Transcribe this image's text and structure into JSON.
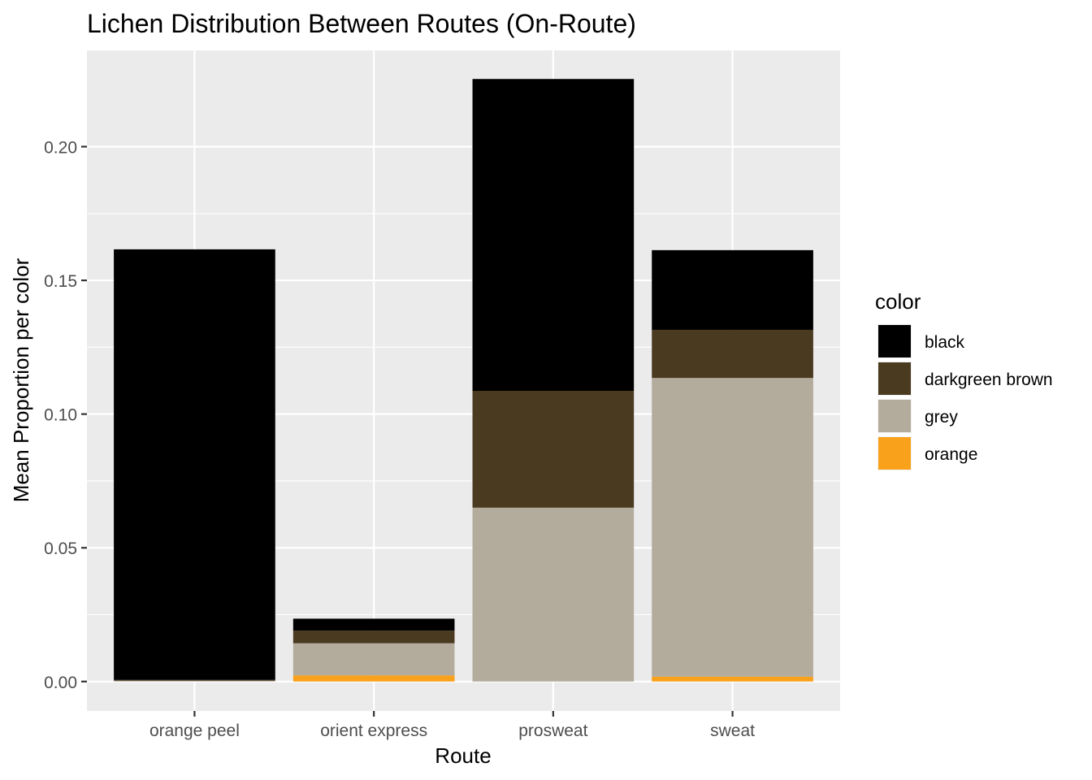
{
  "chart_data": {
    "type": "bar",
    "stacked": true,
    "title": "Lichen Distribution Between Routes (On-Route)",
    "xlabel": "Route",
    "ylabel": "Mean Proportion per color",
    "categories": [
      "orange peel",
      "orient express",
      "prosweat",
      "sweat"
    ],
    "ylim": [
      -0.011,
      0.236
    ],
    "yticks": [
      0.0,
      0.05,
      0.1,
      0.15,
      0.2
    ],
    "ytick_labels": [
      "0.00",
      "0.05",
      "0.10",
      "0.15",
      "0.20"
    ],
    "grid": true,
    "legend": {
      "title": "color",
      "position": "right"
    },
    "series": [
      {
        "name": "orange",
        "color": "#F9A11B",
        "values": [
          0.0,
          0.0023,
          0.0,
          0.0018
        ]
      },
      {
        "name": "grey",
        "color": "#B3AC9C",
        "values": [
          0.0003,
          0.012,
          0.065,
          0.1117
        ]
      },
      {
        "name": "darkgreen brown",
        "color": "#4A3A1F",
        "values": [
          0.0003,
          0.0047,
          0.0437,
          0.018
        ]
      },
      {
        "name": "black",
        "color": "#000000",
        "values": [
          0.161,
          0.0045,
          0.1166,
          0.0298
        ]
      }
    ],
    "legend_order": [
      "black",
      "darkgreen brown",
      "grey",
      "orange"
    ]
  }
}
